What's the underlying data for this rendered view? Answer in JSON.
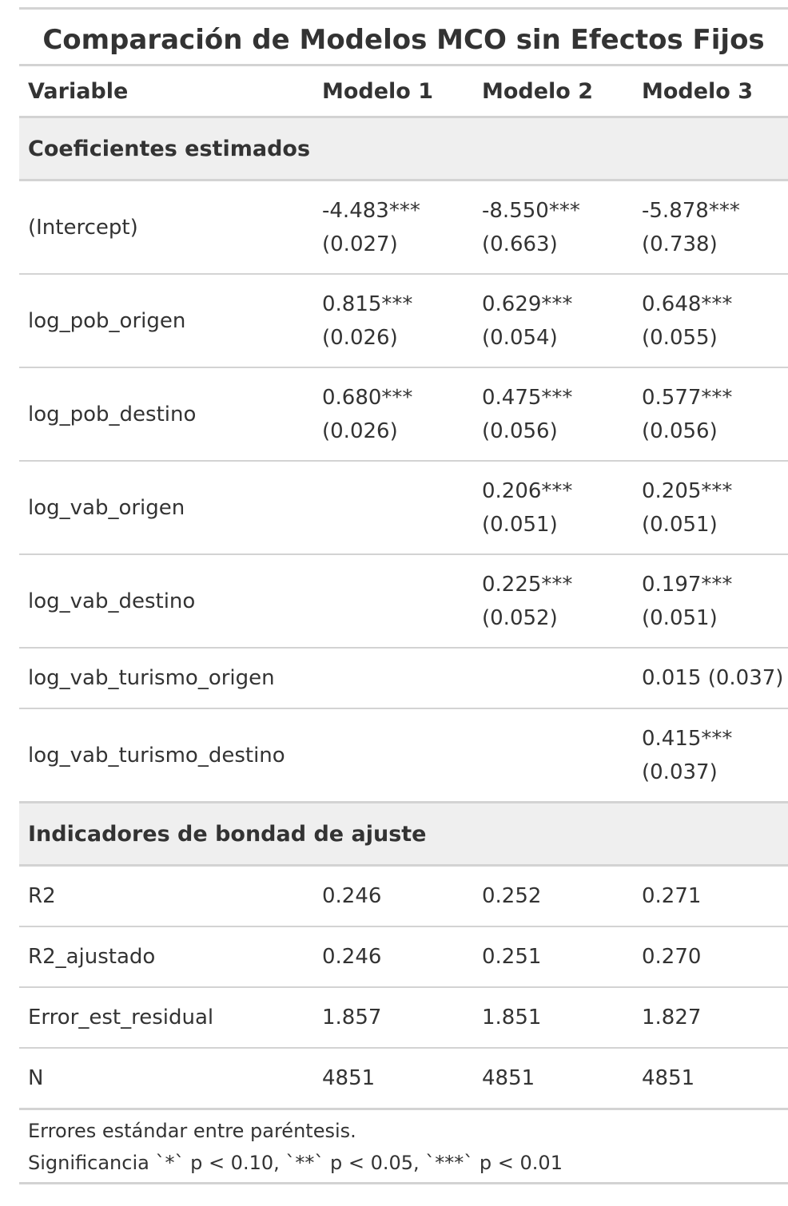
{
  "title": "Comparación de Modelos MCO sin Efectos Fijos",
  "header": {
    "variable": "Variable",
    "m1": "Modelo 1",
    "m2": "Modelo 2",
    "m3": "Modelo 3"
  },
  "group1": "Coeficientes estimados",
  "coefficients": [
    {
      "name": "(Intercept)",
      "m1": {
        "est": "-4.483***",
        "se": "(0.027)"
      },
      "m2": {
        "est": "-8.550***",
        "se": "(0.663)"
      },
      "m3": {
        "est": "-5.878***",
        "se": "(0.738)"
      }
    },
    {
      "name": "log_pob_origen",
      "m1": {
        "est": "0.815***",
        "se": "(0.026)"
      },
      "m2": {
        "est": "0.629***",
        "se": "(0.054)"
      },
      "m3": {
        "est": "0.648***",
        "se": "(0.055)"
      }
    },
    {
      "name": "log_pob_destino",
      "m1": {
        "est": "0.680***",
        "se": "(0.026)"
      },
      "m2": {
        "est": "0.475***",
        "se": "(0.056)"
      },
      "m3": {
        "est": "0.577***",
        "se": "(0.056)"
      }
    },
    {
      "name": "log_vab_origen",
      "m1": {
        "est": "",
        "se": ""
      },
      "m2": {
        "est": "0.206***",
        "se": "(0.051)"
      },
      "m3": {
        "est": "0.205***",
        "se": "(0.051)"
      }
    },
    {
      "name": "log_vab_destino",
      "m1": {
        "est": "",
        "se": ""
      },
      "m2": {
        "est": "0.225***",
        "se": "(0.052)"
      },
      "m3": {
        "est": "0.197***",
        "se": "(0.051)"
      }
    },
    {
      "name": "log_vab_turismo_origen",
      "m1": {
        "est": "",
        "se": ""
      },
      "m2": {
        "est": "",
        "se": ""
      },
      "m3": {
        "est": "0.015 (0.037)",
        "se": ""
      }
    },
    {
      "name": "log_vab_turismo_destino",
      "m1": {
        "est": "",
        "se": ""
      },
      "m2": {
        "est": "",
        "se": ""
      },
      "m3": {
        "est": "0.415***",
        "se": "(0.037)"
      }
    }
  ],
  "group2": "Indicadores de bondad de ajuste",
  "fit": [
    {
      "name": "R2",
      "m1": "0.246",
      "m2": "0.252",
      "m3": "0.271"
    },
    {
      "name": "R2_ajustado",
      "m1": "0.246",
      "m2": "0.251",
      "m3": "0.270"
    },
    {
      "name": "Error_est_residual",
      "m1": "1.857",
      "m2": "1.851",
      "m3": "1.827"
    },
    {
      "name": "N",
      "m1": "4851",
      "m2": "4851",
      "m3": "4851"
    }
  ],
  "footnotes": [
    "Errores estándar entre paréntesis.",
    "Significancia `*` p < 0.10, `**` p < 0.05, `***` p < 0.01"
  ]
}
